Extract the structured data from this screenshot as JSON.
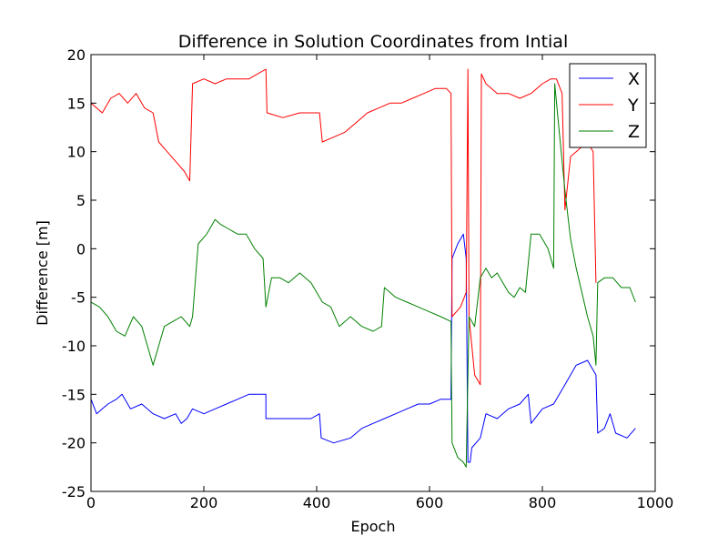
{
  "chart_data": {
    "type": "line",
    "title": "Difference in Solution Coordinates from Intial",
    "xlabel": "Epoch",
    "ylabel": "Difference [m]",
    "xlim": [
      0,
      1000
    ],
    "ylim": [
      -25,
      20
    ],
    "xticks": [
      0,
      200,
      400,
      600,
      800,
      1000
    ],
    "yticks": [
      -25,
      -20,
      -15,
      -10,
      -5,
      0,
      5,
      10,
      15,
      20
    ],
    "grid": false,
    "legend_position": "top-right",
    "series": [
      {
        "name": "X",
        "color": "#0000ff",
        "points": [
          [
            0,
            -15.5
          ],
          [
            10,
            -17
          ],
          [
            20,
            -16.5
          ],
          [
            30,
            -16
          ],
          [
            45,
            -15.5
          ],
          [
            55,
            -15
          ],
          [
            70,
            -16.5
          ],
          [
            90,
            -16
          ],
          [
            110,
            -17
          ],
          [
            130,
            -17.5
          ],
          [
            150,
            -17
          ],
          [
            160,
            -18
          ],
          [
            170,
            -17.5
          ],
          [
            180,
            -16.5
          ],
          [
            200,
            -17
          ],
          [
            220,
            -16.5
          ],
          [
            240,
            -16
          ],
          [
            260,
            -15.5
          ],
          [
            280,
            -15
          ],
          [
            300,
            -15
          ],
          [
            310,
            -15
          ],
          [
            310,
            -17.5
          ],
          [
            330,
            -17.5
          ],
          [
            360,
            -17.5
          ],
          [
            390,
            -17.5
          ],
          [
            405,
            -17
          ],
          [
            408,
            -19.5
          ],
          [
            430,
            -20
          ],
          [
            460,
            -19.5
          ],
          [
            480,
            -18.5
          ],
          [
            500,
            -18
          ],
          [
            520,
            -17.5
          ],
          [
            540,
            -17
          ],
          [
            560,
            -16.5
          ],
          [
            580,
            -16
          ],
          [
            600,
            -16
          ],
          [
            620,
            -15.5
          ],
          [
            638,
            -15.5
          ],
          [
            640,
            -1
          ],
          [
            650,
            0.5
          ],
          [
            660,
            1.5
          ],
          [
            665,
            -1
          ],
          [
            668,
            -22
          ],
          [
            672,
            -22
          ],
          [
            675,
            -20.5
          ],
          [
            690,
            -19.5
          ],
          [
            700,
            -17
          ],
          [
            720,
            -17.5
          ],
          [
            740,
            -16.5
          ],
          [
            760,
            -16
          ],
          [
            775,
            -15
          ],
          [
            780,
            -18
          ],
          [
            800,
            -16.5
          ],
          [
            820,
            -16
          ],
          [
            840,
            -14
          ],
          [
            860,
            -12
          ],
          [
            880,
            -11.5
          ],
          [
            895,
            -13
          ],
          [
            898,
            -19
          ],
          [
            910,
            -18.5
          ],
          [
            920,
            -17
          ],
          [
            930,
            -19
          ],
          [
            950,
            -19.5
          ],
          [
            965,
            -18.5
          ]
        ]
      },
      {
        "name": "Y",
        "color": "#ff0000",
        "points": [
          [
            0,
            15
          ],
          [
            20,
            14
          ],
          [
            35,
            15.5
          ],
          [
            50,
            16
          ],
          [
            65,
            15
          ],
          [
            80,
            16
          ],
          [
            95,
            14.5
          ],
          [
            110,
            14
          ],
          [
            120,
            11
          ],
          [
            135,
            10
          ],
          [
            150,
            9
          ],
          [
            165,
            8
          ],
          [
            175,
            7
          ],
          [
            180,
            17
          ],
          [
            200,
            17.5
          ],
          [
            220,
            17
          ],
          [
            240,
            17.5
          ],
          [
            260,
            17.5
          ],
          [
            280,
            17.5
          ],
          [
            295,
            18
          ],
          [
            310,
            18.5
          ],
          [
            312,
            14
          ],
          [
            340,
            13.5
          ],
          [
            370,
            14
          ],
          [
            395,
            14
          ],
          [
            405,
            14
          ],
          [
            410,
            11
          ],
          [
            430,
            11.5
          ],
          [
            450,
            12
          ],
          [
            470,
            13
          ],
          [
            490,
            14
          ],
          [
            510,
            14.5
          ],
          [
            530,
            15
          ],
          [
            550,
            15
          ],
          [
            570,
            15.5
          ],
          [
            590,
            16
          ],
          [
            610,
            16.5
          ],
          [
            630,
            16.5
          ],
          [
            638,
            16
          ],
          [
            640,
            -7
          ],
          [
            655,
            -6
          ],
          [
            665,
            -4.5
          ],
          [
            668,
            18.5
          ],
          [
            670,
            -7
          ],
          [
            680,
            -13
          ],
          [
            690,
            -14
          ],
          [
            692,
            18
          ],
          [
            700,
            17
          ],
          [
            720,
            16
          ],
          [
            740,
            16
          ],
          [
            760,
            15.5
          ],
          [
            780,
            16
          ],
          [
            800,
            17
          ],
          [
            815,
            17.5
          ],
          [
            825,
            17.5
          ],
          [
            835,
            16
          ],
          [
            840,
            4
          ],
          [
            850,
            9.5
          ],
          [
            860,
            10
          ],
          [
            880,
            11
          ],
          [
            890,
            10
          ],
          [
            895,
            -3.5
          ]
        ]
      },
      {
        "name": "Z",
        "color": "#008000",
        "points": [
          [
            0,
            -5.5
          ],
          [
            15,
            -6
          ],
          [
            30,
            -7
          ],
          [
            45,
            -8.5
          ],
          [
            60,
            -9
          ],
          [
            75,
            -7
          ],
          [
            90,
            -8
          ],
          [
            100,
            -10
          ],
          [
            110,
            -12
          ],
          [
            120,
            -10
          ],
          [
            130,
            -8
          ],
          [
            145,
            -7.5
          ],
          [
            160,
            -7
          ],
          [
            175,
            -8
          ],
          [
            180,
            -7
          ],
          [
            190,
            0.5
          ],
          [
            205,
            1.5
          ],
          [
            220,
            3
          ],
          [
            230,
            2.5
          ],
          [
            245,
            2
          ],
          [
            260,
            1.5
          ],
          [
            275,
            1.5
          ],
          [
            290,
            0
          ],
          [
            305,
            -1
          ],
          [
            310,
            -6
          ],
          [
            320,
            -3
          ],
          [
            335,
            -3
          ],
          [
            350,
            -3.5
          ],
          [
            370,
            -2.5
          ],
          [
            390,
            -3.5
          ],
          [
            400,
            -4.5
          ],
          [
            410,
            -5.5
          ],
          [
            425,
            -6
          ],
          [
            440,
            -8
          ],
          [
            460,
            -7
          ],
          [
            480,
            -8
          ],
          [
            500,
            -8.5
          ],
          [
            515,
            -8
          ],
          [
            520,
            -4
          ],
          [
            540,
            -5
          ],
          [
            560,
            -5.5
          ],
          [
            580,
            -6
          ],
          [
            600,
            -6.5
          ],
          [
            620,
            -7
          ],
          [
            638,
            -7.5
          ],
          [
            640,
            -20
          ],
          [
            650,
            -21.5
          ],
          [
            660,
            -22
          ],
          [
            665,
            -22.5
          ],
          [
            670,
            -7
          ],
          [
            680,
            -8
          ],
          [
            690,
            -3
          ],
          [
            700,
            -2
          ],
          [
            710,
            -3
          ],
          [
            720,
            -2.5
          ],
          [
            730,
            -3.5
          ],
          [
            740,
            -4.5
          ],
          [
            750,
            -5
          ],
          [
            760,
            -4
          ],
          [
            770,
            -4.5
          ],
          [
            780,
            1.5
          ],
          [
            795,
            1.5
          ],
          [
            810,
            0
          ],
          [
            820,
            -2
          ],
          [
            822,
            17
          ],
          [
            830,
            12
          ],
          [
            840,
            6
          ],
          [
            850,
            1
          ],
          [
            860,
            -2
          ],
          [
            870,
            -4.5
          ],
          [
            880,
            -7
          ],
          [
            890,
            -9
          ],
          [
            895,
            -12
          ],
          [
            898,
            -3.5
          ],
          [
            910,
            -3
          ],
          [
            925,
            -3
          ],
          [
            940,
            -4
          ],
          [
            955,
            -4
          ],
          [
            965,
            -5.5
          ]
        ]
      }
    ]
  }
}
